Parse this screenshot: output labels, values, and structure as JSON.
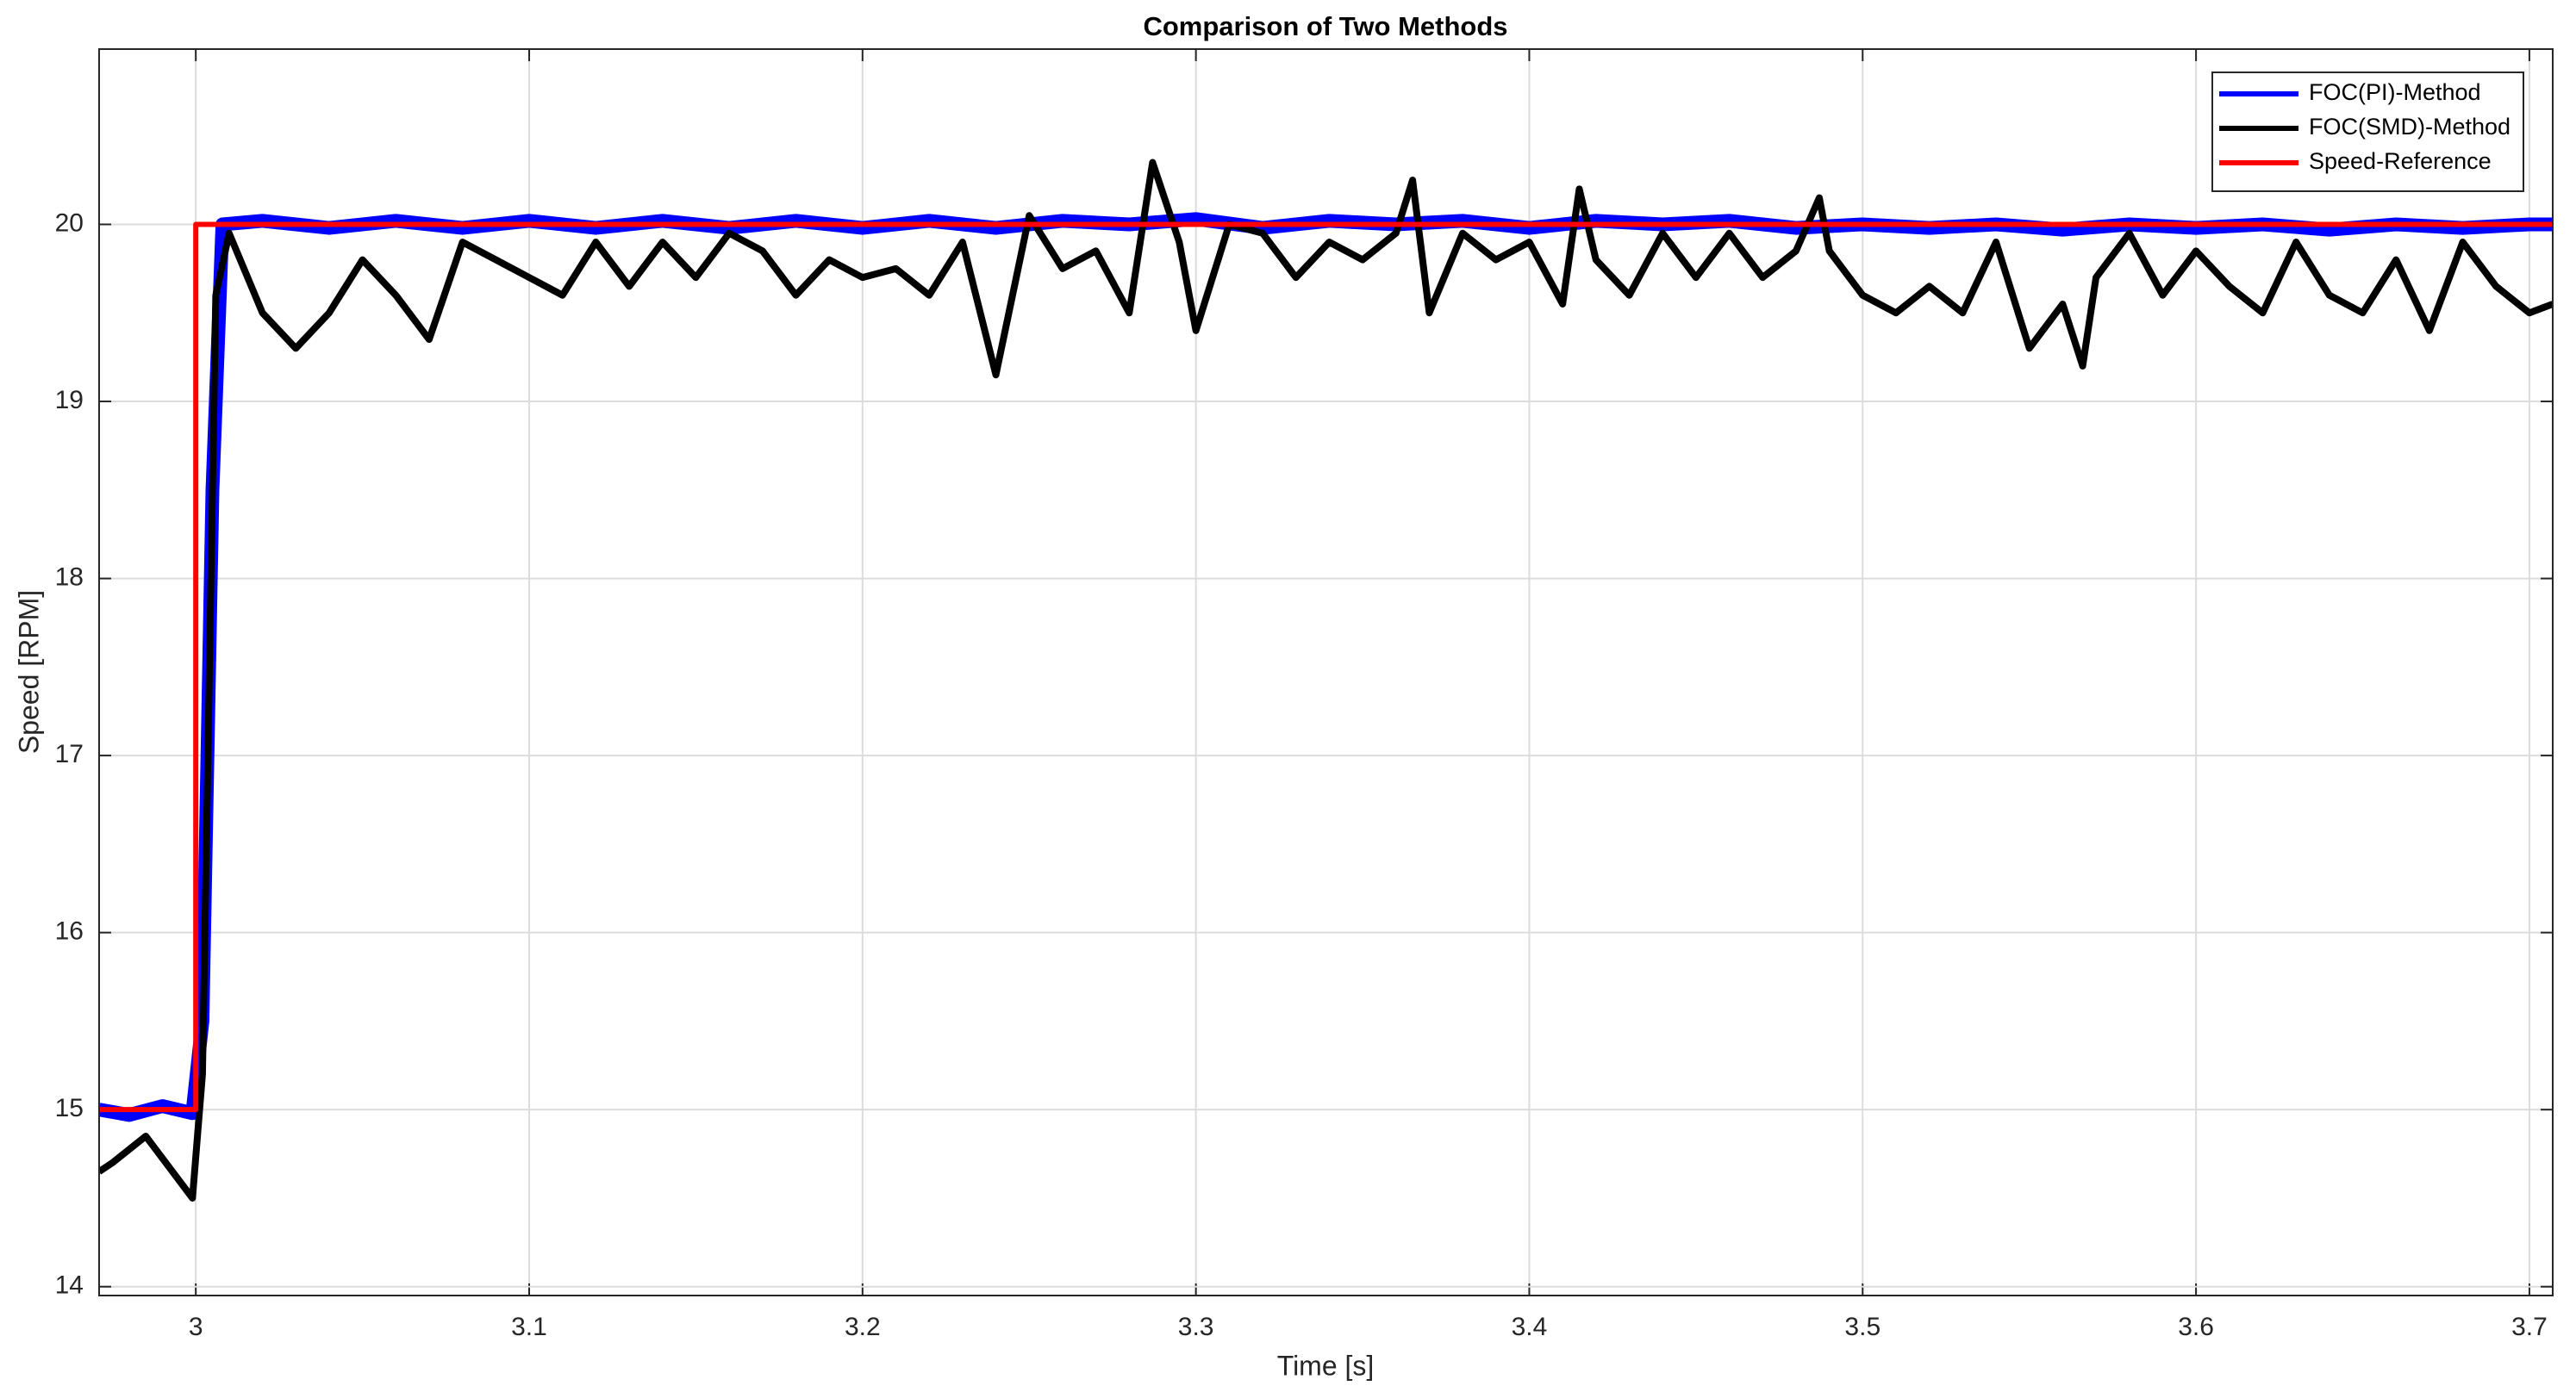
{
  "chart_data": {
    "type": "line",
    "title": "Comparison of Two Methods",
    "x_label": "Time [s]",
    "y_label": "Speed [RPM]",
    "xlim": [
      2.971,
      3.707
    ],
    "ylim": [
      13.95,
      20.99
    ],
    "xticks": [
      3,
      3.1,
      3.2,
      3.3,
      3.4,
      3.5,
      3.6,
      3.7
    ],
    "yticks": [
      14,
      15,
      16,
      17,
      18,
      19,
      20
    ],
    "grid": true,
    "legend": "upper right",
    "series": [
      {
        "name": "FOC(PI)-Method",
        "color": "#0000ff",
        "x": [
          2.971,
          2.98,
          2.99,
          2.999,
          3.002,
          3.005,
          3.008,
          3.02,
          3.04,
          3.06,
          3.08,
          3.1,
          3.12,
          3.14,
          3.16,
          3.18,
          3.2,
          3.22,
          3.24,
          3.26,
          3.28,
          3.3,
          3.32,
          3.34,
          3.36,
          3.38,
          3.4,
          3.42,
          3.44,
          3.46,
          3.48,
          3.5,
          3.52,
          3.54,
          3.56,
          3.58,
          3.6,
          3.62,
          3.64,
          3.66,
          3.68,
          3.7,
          3.707
        ],
        "values": [
          15.0,
          14.97,
          15.02,
          14.98,
          15.5,
          18.5,
          20.0,
          20.02,
          19.98,
          20.02,
          19.98,
          20.02,
          19.98,
          20.02,
          19.98,
          20.02,
          19.98,
          20.02,
          19.98,
          20.02,
          20.0,
          20.03,
          19.98,
          20.02,
          20.0,
          20.02,
          19.98,
          20.02,
          20.0,
          20.02,
          19.98,
          20.0,
          19.98,
          20.0,
          19.97,
          20.0,
          19.98,
          20.0,
          19.97,
          20.0,
          19.98,
          20.0,
          20.0
        ]
      },
      {
        "name": "FOC(SMD)-Method",
        "color": "#000000",
        "x": [
          2.971,
          2.975,
          2.985,
          2.995,
          2.999,
          3.002,
          3.006,
          3.01,
          3.02,
          3.03,
          3.04,
          3.05,
          3.06,
          3.07,
          3.08,
          3.09,
          3.1,
          3.11,
          3.12,
          3.13,
          3.14,
          3.15,
          3.16,
          3.17,
          3.18,
          3.19,
          3.2,
          3.21,
          3.22,
          3.23,
          3.24,
          3.25,
          3.26,
          3.27,
          3.28,
          3.287,
          3.295,
          3.3,
          3.31,
          3.32,
          3.33,
          3.34,
          3.35,
          3.36,
          3.365,
          3.37,
          3.38,
          3.39,
          3.4,
          3.41,
          3.415,
          3.42,
          3.43,
          3.44,
          3.45,
          3.46,
          3.47,
          3.48,
          3.487,
          3.49,
          3.5,
          3.51,
          3.52,
          3.53,
          3.54,
          3.55,
          3.56,
          3.566,
          3.57,
          3.58,
          3.59,
          3.6,
          3.61,
          3.62,
          3.63,
          3.64,
          3.65,
          3.66,
          3.67,
          3.68,
          3.69,
          3.7,
          3.707
        ],
        "values": [
          14.65,
          14.7,
          14.85,
          14.6,
          14.5,
          15.2,
          19.6,
          19.95,
          19.5,
          19.3,
          19.5,
          19.8,
          19.6,
          19.35,
          19.9,
          19.8,
          19.7,
          19.6,
          19.9,
          19.65,
          19.9,
          19.7,
          19.95,
          19.85,
          19.6,
          19.8,
          19.7,
          19.75,
          19.6,
          19.9,
          19.15,
          20.05,
          19.75,
          19.85,
          19.5,
          20.35,
          19.9,
          19.4,
          20.0,
          19.95,
          19.7,
          19.9,
          19.8,
          19.95,
          20.25,
          19.5,
          19.95,
          19.8,
          19.9,
          19.55,
          20.2,
          19.8,
          19.6,
          19.95,
          19.7,
          19.95,
          19.7,
          19.85,
          20.15,
          19.85,
          19.6,
          19.5,
          19.65,
          19.5,
          19.9,
          19.3,
          19.55,
          19.2,
          19.7,
          19.95,
          19.6,
          19.85,
          19.65,
          19.5,
          19.9,
          19.6,
          19.5,
          19.8,
          19.4,
          19.9,
          19.65,
          19.5,
          19.55
        ]
      },
      {
        "name": "Speed-Reference",
        "color": "#ff0000",
        "x": [
          2.971,
          3.0,
          3.0,
          3.707
        ],
        "values": [
          15,
          15,
          20,
          20
        ]
      }
    ]
  }
}
